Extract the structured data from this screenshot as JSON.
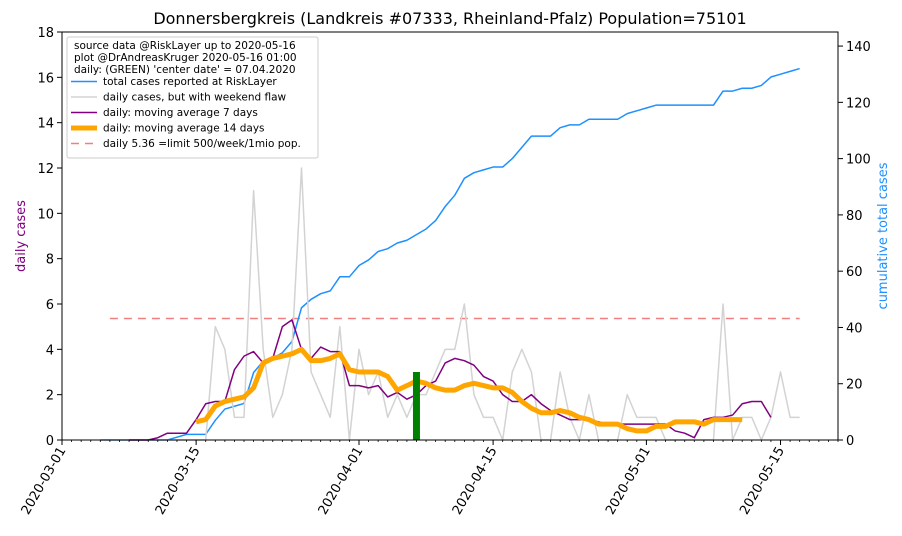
{
  "chart_data": {
    "type": "line",
    "title": "Donnersbergkreis (Landkreis #07333, Rheinland-Pfalz) Population=75101",
    "ylabel_left": "daily cases",
    "ylabel_right": "cumulative total cases",
    "colors": {
      "ylabel_left": "#800080",
      "ylabel_right": "#1e90ff"
    },
    "x_range": [
      "2020-03-01",
      "2020-05-21"
    ],
    "ylim_left": [
      0,
      18
    ],
    "ylim_right": [
      0,
      145
    ],
    "x_ticks": [
      "2020-03-01",
      "2020-03-15",
      "2020-04-01",
      "2020-04-15",
      "2020-05-01",
      "2020-05-15"
    ],
    "y_ticks_left": [
      "0",
      "2",
      "4",
      "6",
      "8",
      "10",
      "12",
      "14",
      "16",
      "18"
    ],
    "y_ticks_right": [
      "0",
      "20",
      "40",
      "60",
      "80",
      "100",
      "120",
      "140"
    ],
    "legend": {
      "position": "upper left",
      "header_lines": [
        "source data @RiskLayer up to 2020-05-16",
        "plot @DrAndreasKruger 2020-05-16 01:00",
        "daily: (GREEN) 'center date' = 07.04.2020"
      ],
      "entries": [
        {
          "label": "total cases reported at RiskLayer",
          "color": "#1e90ff",
          "width": 1.5,
          "dash": ""
        },
        {
          "label": "daily cases, but with weekend flaw",
          "color": "#d3d3d3",
          "width": 1.5,
          "dash": ""
        },
        {
          "label": "daily: moving average 7 days",
          "color": "#800080",
          "width": 1.5,
          "dash": ""
        },
        {
          "label": "daily: moving average 14 days",
          "color": "#ffa500",
          "width": 5,
          "dash": ""
        },
        {
          "label": "daily 5.36 =limit 500/week/1mio pop.",
          "color": "#f08080",
          "width": 1.5,
          "dash": "8,6"
        }
      ]
    },
    "limit_line": {
      "y": 5.36,
      "x_start": "2020-03-06",
      "x_end": "2020-05-17",
      "color": "#f08080"
    },
    "center_bar": {
      "date": "2020-04-07",
      "value": 3,
      "color": "#008000"
    },
    "series": [
      {
        "name": "total cases reported at RiskLayer",
        "axis": "right",
        "color": "#1e90ff",
        "width": 1.5,
        "x": [
          "2020-03-05",
          "2020-03-06",
          "2020-03-07",
          "2020-03-08",
          "2020-03-09",
          "2020-03-10",
          "2020-03-11",
          "2020-03-12",
          "2020-03-13",
          "2020-03-14",
          "2020-03-15",
          "2020-03-16",
          "2020-03-17",
          "2020-03-18",
          "2020-03-19",
          "2020-03-20",
          "2020-03-21",
          "2020-03-22",
          "2020-03-23",
          "2020-03-24",
          "2020-03-25",
          "2020-03-26",
          "2020-03-27",
          "2020-03-28",
          "2020-03-29",
          "2020-03-30",
          "2020-03-31",
          "2020-04-01",
          "2020-04-02",
          "2020-04-03",
          "2020-04-04",
          "2020-04-05",
          "2020-04-06",
          "2020-04-07",
          "2020-04-08",
          "2020-04-09",
          "2020-04-10",
          "2020-04-11",
          "2020-04-12",
          "2020-04-13",
          "2020-04-14",
          "2020-04-15",
          "2020-04-16",
          "2020-04-17",
          "2020-04-18",
          "2020-04-19",
          "2020-04-20",
          "2020-04-21",
          "2020-04-22",
          "2020-04-23",
          "2020-04-24",
          "2020-04-25",
          "2020-04-26",
          "2020-04-27",
          "2020-04-28",
          "2020-04-29",
          "2020-04-30",
          "2020-05-01",
          "2020-05-02",
          "2020-05-03",
          "2020-05-04",
          "2020-05-05",
          "2020-05-06",
          "2020-05-07",
          "2020-05-08",
          "2020-05-09",
          "2020-05-10",
          "2020-05-11",
          "2020-05-12",
          "2020-05-13",
          "2020-05-14",
          "2020-05-15",
          "2020-05-16",
          "2020-05-17"
        ],
        "values": [
          0,
          0,
          0,
          0,
          0,
          0,
          0,
          0,
          1,
          2,
          2,
          2,
          7,
          11,
          12,
          13,
          24,
          28,
          29,
          31,
          35,
          47,
          50,
          52,
          53,
          58,
          58,
          62,
          64,
          67,
          68,
          70,
          71,
          73,
          75,
          78,
          83,
          87,
          93,
          95,
          96,
          97,
          97,
          100,
          104,
          108,
          108,
          108,
          111,
          112,
          112,
          114,
          114,
          114,
          114,
          116,
          117,
          118,
          119,
          119,
          119,
          119,
          119,
          119,
          119,
          124,
          124,
          125,
          125,
          126,
          129,
          130,
          131,
          132
        ]
      },
      {
        "name": "daily cases, but with weekend flaw",
        "axis": "left",
        "color": "#d3d3d3",
        "width": 1.5,
        "x": [
          "2020-03-05",
          "2020-03-06",
          "2020-03-07",
          "2020-03-08",
          "2020-03-09",
          "2020-03-10",
          "2020-03-11",
          "2020-03-12",
          "2020-03-13",
          "2020-03-14",
          "2020-03-15",
          "2020-03-16",
          "2020-03-17",
          "2020-03-18",
          "2020-03-19",
          "2020-03-20",
          "2020-03-21",
          "2020-03-22",
          "2020-03-23",
          "2020-03-24",
          "2020-03-25",
          "2020-03-26",
          "2020-03-27",
          "2020-03-28",
          "2020-03-29",
          "2020-03-30",
          "2020-03-31",
          "2020-04-01",
          "2020-04-02",
          "2020-04-03",
          "2020-04-04",
          "2020-04-05",
          "2020-04-06",
          "2020-04-07",
          "2020-04-08",
          "2020-04-09",
          "2020-04-10",
          "2020-04-11",
          "2020-04-12",
          "2020-04-13",
          "2020-04-14",
          "2020-04-15",
          "2020-04-16",
          "2020-04-17",
          "2020-04-18",
          "2020-04-19",
          "2020-04-20",
          "2020-04-21",
          "2020-04-22",
          "2020-04-23",
          "2020-04-24",
          "2020-04-25",
          "2020-04-26",
          "2020-04-27",
          "2020-04-28",
          "2020-04-29",
          "2020-04-30",
          "2020-05-01",
          "2020-05-02",
          "2020-05-03",
          "2020-05-04",
          "2020-05-05",
          "2020-05-06",
          "2020-05-07",
          "2020-05-08",
          "2020-05-09",
          "2020-05-10",
          "2020-05-11",
          "2020-05-12",
          "2020-05-13",
          "2020-05-14",
          "2020-05-15",
          "2020-05-16",
          "2020-05-17"
        ],
        "values": [
          0,
          0,
          0,
          0,
          0,
          0,
          0,
          0,
          0,
          0,
          0,
          0,
          5,
          4,
          1,
          1,
          11,
          4,
          1,
          2,
          4,
          12,
          3,
          2,
          1,
          5,
          0,
          4,
          2,
          3,
          1,
          2,
          1,
          2,
          2,
          3,
          4,
          4,
          6,
          2,
          1,
          1,
          0,
          3,
          4,
          3,
          0,
          0,
          3,
          1,
          0,
          2,
          0,
          0,
          0,
          2,
          1,
          1,
          1,
          0,
          0,
          0,
          0,
          0,
          0,
          6,
          0,
          1,
          1,
          0,
          1,
          3,
          1,
          1
        ]
      },
      {
        "name": "daily: moving average 7 days",
        "axis": "left",
        "color": "#800080",
        "width": 1.5,
        "x": [
          "2020-03-08",
          "2020-03-09",
          "2020-03-10",
          "2020-03-11",
          "2020-03-12",
          "2020-03-13",
          "2020-03-14",
          "2020-03-15",
          "2020-03-16",
          "2020-03-17",
          "2020-03-18",
          "2020-03-19",
          "2020-03-20",
          "2020-03-21",
          "2020-03-22",
          "2020-03-23",
          "2020-03-24",
          "2020-03-25",
          "2020-03-26",
          "2020-03-27",
          "2020-03-28",
          "2020-03-29",
          "2020-03-30",
          "2020-03-31",
          "2020-04-01",
          "2020-04-02",
          "2020-04-03",
          "2020-04-04",
          "2020-04-05",
          "2020-04-06",
          "2020-04-07",
          "2020-04-08",
          "2020-04-09",
          "2020-04-10",
          "2020-04-11",
          "2020-04-12",
          "2020-04-13",
          "2020-04-14",
          "2020-04-15",
          "2020-04-16",
          "2020-04-17",
          "2020-04-18",
          "2020-04-19",
          "2020-04-20",
          "2020-04-21",
          "2020-04-22",
          "2020-04-23",
          "2020-04-24",
          "2020-04-25",
          "2020-04-26",
          "2020-04-27",
          "2020-04-28",
          "2020-04-29",
          "2020-04-30",
          "2020-05-01",
          "2020-05-02",
          "2020-05-03",
          "2020-05-04",
          "2020-05-05",
          "2020-05-06",
          "2020-05-07",
          "2020-05-08",
          "2020-05-09",
          "2020-05-10",
          "2020-05-11",
          "2020-05-12",
          "2020-05-13",
          "2020-05-14"
        ],
        "values": [
          0,
          0,
          0,
          0.1,
          0.3,
          0.3,
          0.3,
          0.9,
          1.6,
          1.7,
          1.7,
          3.1,
          3.7,
          3.9,
          3.4,
          3.6,
          5.0,
          5.3,
          4.0,
          3.6,
          4.1,
          3.9,
          3.9,
          2.4,
          2.4,
          2.3,
          2.4,
          1.9,
          2.1,
          1.8,
          2.0,
          2.4,
          2.6,
          3.4,
          3.6,
          3.5,
          3.3,
          2.8,
          2.6,
          2.0,
          1.7,
          1.7,
          2.0,
          1.6,
          1.3,
          1.1,
          0.9,
          0.9,
          0.9,
          0.8,
          0.7,
          0.7,
          0.7,
          0.7,
          0.7,
          0.7,
          0.7,
          0.4,
          0.3,
          0.1,
          0.9,
          1.0,
          1.0,
          1.1,
          1.6,
          1.7,
          1.7,
          1.0
        ]
      },
      {
        "name": "daily: moving average 14 days",
        "axis": "left",
        "color": "#ffa500",
        "width": 5,
        "x": [
          "2020-03-15",
          "2020-03-16",
          "2020-03-17",
          "2020-03-18",
          "2020-03-19",
          "2020-03-20",
          "2020-03-21",
          "2020-03-22",
          "2020-03-23",
          "2020-03-24",
          "2020-03-25",
          "2020-03-26",
          "2020-03-27",
          "2020-03-28",
          "2020-03-29",
          "2020-03-30",
          "2020-03-31",
          "2020-04-01",
          "2020-04-02",
          "2020-04-03",
          "2020-04-04",
          "2020-04-05",
          "2020-04-06",
          "2020-04-07",
          "2020-04-08",
          "2020-04-09",
          "2020-04-10",
          "2020-04-11",
          "2020-04-12",
          "2020-04-13",
          "2020-04-14",
          "2020-04-15",
          "2020-04-16",
          "2020-04-17",
          "2020-04-18",
          "2020-04-19",
          "2020-04-20",
          "2020-04-21",
          "2020-04-22",
          "2020-04-23",
          "2020-04-24",
          "2020-04-25",
          "2020-04-26",
          "2020-04-27",
          "2020-04-28",
          "2020-04-29",
          "2020-04-30",
          "2020-05-01",
          "2020-05-02",
          "2020-05-03",
          "2020-05-04",
          "2020-05-05",
          "2020-05-06",
          "2020-05-07",
          "2020-05-08",
          "2020-05-09",
          "2020-05-10",
          "2020-05-11"
        ],
        "values": [
          0.8,
          0.9,
          1.5,
          1.7,
          1.8,
          1.9,
          2.3,
          3.4,
          3.6,
          3.7,
          3.8,
          4.0,
          3.5,
          3.5,
          3.6,
          3.8,
          3.1,
          3.0,
          3.0,
          3.0,
          2.8,
          2.2,
          2.4,
          2.6,
          2.5,
          2.3,
          2.2,
          2.2,
          2.4,
          2.5,
          2.4,
          2.3,
          2.3,
          2.1,
          1.7,
          1.4,
          1.2,
          1.2,
          1.3,
          1.2,
          1.0,
          0.9,
          0.7,
          0.7,
          0.7,
          0.5,
          0.4,
          0.4,
          0.6,
          0.6,
          0.8,
          0.8,
          0.8,
          0.7,
          0.9,
          0.9,
          0.9,
          0.9
        ]
      }
    ]
  }
}
